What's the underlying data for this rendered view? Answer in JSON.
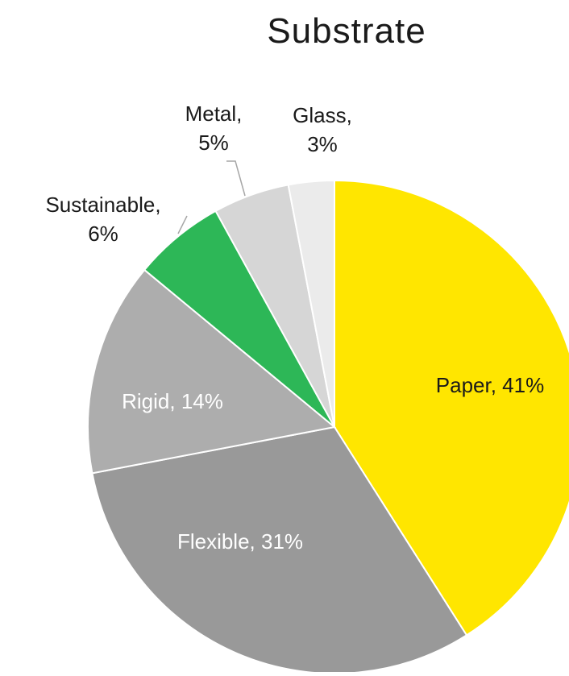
{
  "chart_data": {
    "type": "pie",
    "title": "Substrate",
    "start_angle_deg": 0,
    "direction": "clockwise",
    "slices": [
      {
        "label": "Paper",
        "value": 41,
        "display": "Paper, 41%",
        "color": "#FFE600",
        "text_color": "#1a1a1a",
        "label_position": "inside"
      },
      {
        "label": "Flexible",
        "value": 31,
        "display": "Flexible, 31%",
        "color": "#999999",
        "text_color": "#ffffff",
        "label_position": "inside"
      },
      {
        "label": "Rigid",
        "value": 14,
        "display": "Rigid, 14%",
        "color": "#ADADAD",
        "text_color": "#ffffff",
        "label_position": "inside"
      },
      {
        "label": "Sustainable",
        "value": 6,
        "display": "Sustainable,|6%",
        "color": "#2DB757",
        "text_color": "#1a1a1a",
        "label_position": "outside"
      },
      {
        "label": "Metal",
        "value": 5,
        "display": "Metal,|5%",
        "color": "#D6D6D6",
        "text_color": "#1a1a1a",
        "label_position": "outside"
      },
      {
        "label": "Glass",
        "value": 3,
        "display": "Glass,|3%",
        "color": "#EBEBEB",
        "text_color": "#1a1a1a",
        "label_position": "outside"
      }
    ]
  }
}
